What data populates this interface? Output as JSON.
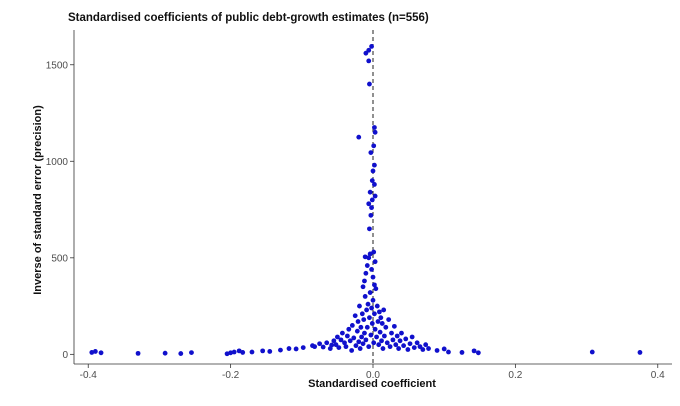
{
  "chart_data": {
    "type": "scatter",
    "title": "Standardised coefficients of public debt-growth estimates (n=556)",
    "xlabel": "Standardised coefficient",
    "ylabel": "Inverse of standard error (precision)",
    "xlim": [
      -0.42,
      0.42
    ],
    "ylim": [
      -50,
      1680
    ],
    "xticks": [
      -0.4,
      -0.2,
      0.0,
      0.2,
      0.4
    ],
    "xtick_labels": [
      "-0.4",
      "-0.2",
      "0.0",
      "0.2",
      "0.4"
    ],
    "yticks": [
      0,
      500,
      1000,
      1500
    ],
    "ytick_labels": [
      "0",
      "500",
      "1000",
      "1500"
    ],
    "reference_line_x": 0,
    "grid": false,
    "point_color": "#1010cc",
    "series": [
      {
        "points": [
          [
            -0.395,
            10
          ],
          [
            -0.39,
            15
          ],
          [
            -0.382,
            8
          ],
          [
            -0.33,
            5
          ],
          [
            -0.292,
            6
          ],
          [
            -0.27,
            4
          ],
          [
            -0.255,
            9
          ],
          [
            -0.205,
            3
          ],
          [
            -0.2,
            8
          ],
          [
            -0.195,
            12
          ],
          [
            -0.188,
            18
          ],
          [
            -0.183,
            10
          ],
          [
            -0.17,
            12
          ],
          [
            -0.155,
            18
          ],
          [
            -0.145,
            15
          ],
          [
            -0.13,
            22
          ],
          [
            -0.118,
            30
          ],
          [
            -0.108,
            28
          ],
          [
            -0.098,
            35
          ],
          [
            -0.085,
            45
          ],
          [
            -0.082,
            40
          ],
          [
            -0.075,
            55
          ],
          [
            -0.07,
            38
          ],
          [
            -0.065,
            60
          ],
          [
            -0.06,
            30
          ],
          [
            -0.058,
            48
          ],
          [
            -0.055,
            70
          ],
          [
            -0.052,
            50
          ],
          [
            -0.05,
            90
          ],
          [
            -0.048,
            35
          ],
          [
            -0.045,
            75
          ],
          [
            -0.043,
            110
          ],
          [
            -0.04,
            60
          ],
          [
            -0.038,
            40
          ],
          [
            -0.036,
            95
          ],
          [
            -0.034,
            130
          ],
          [
            -0.032,
            70
          ],
          [
            -0.03,
            20
          ],
          [
            -0.029,
            150
          ],
          [
            -0.027,
            85
          ],
          [
            -0.025,
            200
          ],
          [
            -0.024,
            45
          ],
          [
            -0.022,
            120
          ],
          [
            -0.021,
            170
          ],
          [
            -0.02,
            65
          ],
          [
            -0.019,
            250
          ],
          [
            -0.018,
            30
          ],
          [
            -0.017,
            140
          ],
          [
            -0.016,
            90
          ],
          [
            -0.015,
            210
          ],
          [
            -0.014,
            55
          ],
          [
            -0.013,
            180
          ],
          [
            -0.012,
            110
          ],
          [
            -0.011,
            300
          ],
          [
            -0.01,
            75
          ],
          [
            -0.009,
            230
          ],
          [
            -0.008,
            140
          ],
          [
            -0.007,
            260
          ],
          [
            -0.006,
            40
          ],
          [
            -0.005,
            190
          ],
          [
            -0.004,
            320
          ],
          [
            -0.003,
            100
          ],
          [
            -0.002,
            240
          ],
          [
            -0.001,
            160
          ],
          [
            0.0,
            280
          ],
          [
            0.001,
            60
          ],
          [
            0.002,
            210
          ],
          [
            0.003,
            130
          ],
          [
            0.004,
            340
          ],
          [
            0.005,
            90
          ],
          [
            0.006,
            250
          ],
          [
            0.007,
            170
          ],
          [
            0.008,
            50
          ],
          [
            0.009,
            220
          ],
          [
            0.01,
            115
          ],
          [
            0.011,
            190
          ],
          [
            0.012,
            70
          ],
          [
            0.013,
            160
          ],
          [
            0.014,
            30
          ],
          [
            0.015,
            230
          ],
          [
            0.016,
            95
          ],
          [
            0.018,
            140
          ],
          [
            0.02,
            60
          ],
          [
            0.022,
            180
          ],
          [
            0.024,
            40
          ],
          [
            0.026,
            110
          ],
          [
            0.028,
            75
          ],
          [
            0.03,
            145
          ],
          [
            0.032,
            50
          ],
          [
            0.034,
            95
          ],
          [
            0.036,
            30
          ],
          [
            0.038,
            70
          ],
          [
            0.04,
            110
          ],
          [
            0.043,
            45
          ],
          [
            0.046,
            80
          ],
          [
            0.049,
            25
          ],
          [
            0.052,
            55
          ],
          [
            0.055,
            90
          ],
          [
            0.058,
            35
          ],
          [
            0.062,
            60
          ],
          [
            0.066,
            40
          ],
          [
            0.07,
            25
          ],
          [
            0.074,
            50
          ],
          [
            0.078,
            30
          ],
          [
            0.09,
            20
          ],
          [
            0.1,
            28
          ],
          [
            0.106,
            12
          ],
          [
            0.125,
            10
          ],
          [
            0.142,
            18
          ],
          [
            0.148,
            8
          ],
          [
            0.308,
            12
          ],
          [
            0.375,
            10
          ],
          [
            -0.012,
            380
          ],
          [
            -0.01,
            420
          ],
          [
            -0.008,
            460
          ],
          [
            -0.006,
            500
          ],
          [
            -0.004,
            520
          ],
          [
            -0.002,
            440
          ],
          [
            0.0,
            400
          ],
          [
            0.002,
            360
          ],
          [
            -0.014,
            350
          ],
          [
            0.003,
            480
          ],
          [
            -0.011,
            505
          ],
          [
            0.001,
            530
          ],
          [
            -0.005,
            650
          ],
          [
            -0.003,
            720
          ],
          [
            -0.002,
            760
          ],
          [
            -0.006,
            780
          ],
          [
            -0.001,
            800
          ],
          [
            -0.004,
            840
          ],
          [
            0.002,
            880
          ],
          [
            0.003,
            820
          ],
          [
            -0.001,
            900
          ],
          [
            0.0,
            950
          ],
          [
            0.002,
            980
          ],
          [
            -0.02,
            1125
          ],
          [
            -0.003,
            1045
          ],
          [
            0.001,
            1080
          ],
          [
            0.003,
            1150
          ],
          [
            0.002,
            1175
          ],
          [
            -0.005,
            1400
          ],
          [
            -0.006,
            1520
          ],
          [
            -0.006,
            1575
          ],
          [
            -0.002,
            1595
          ],
          [
            -0.01,
            1560
          ]
        ]
      }
    ]
  }
}
